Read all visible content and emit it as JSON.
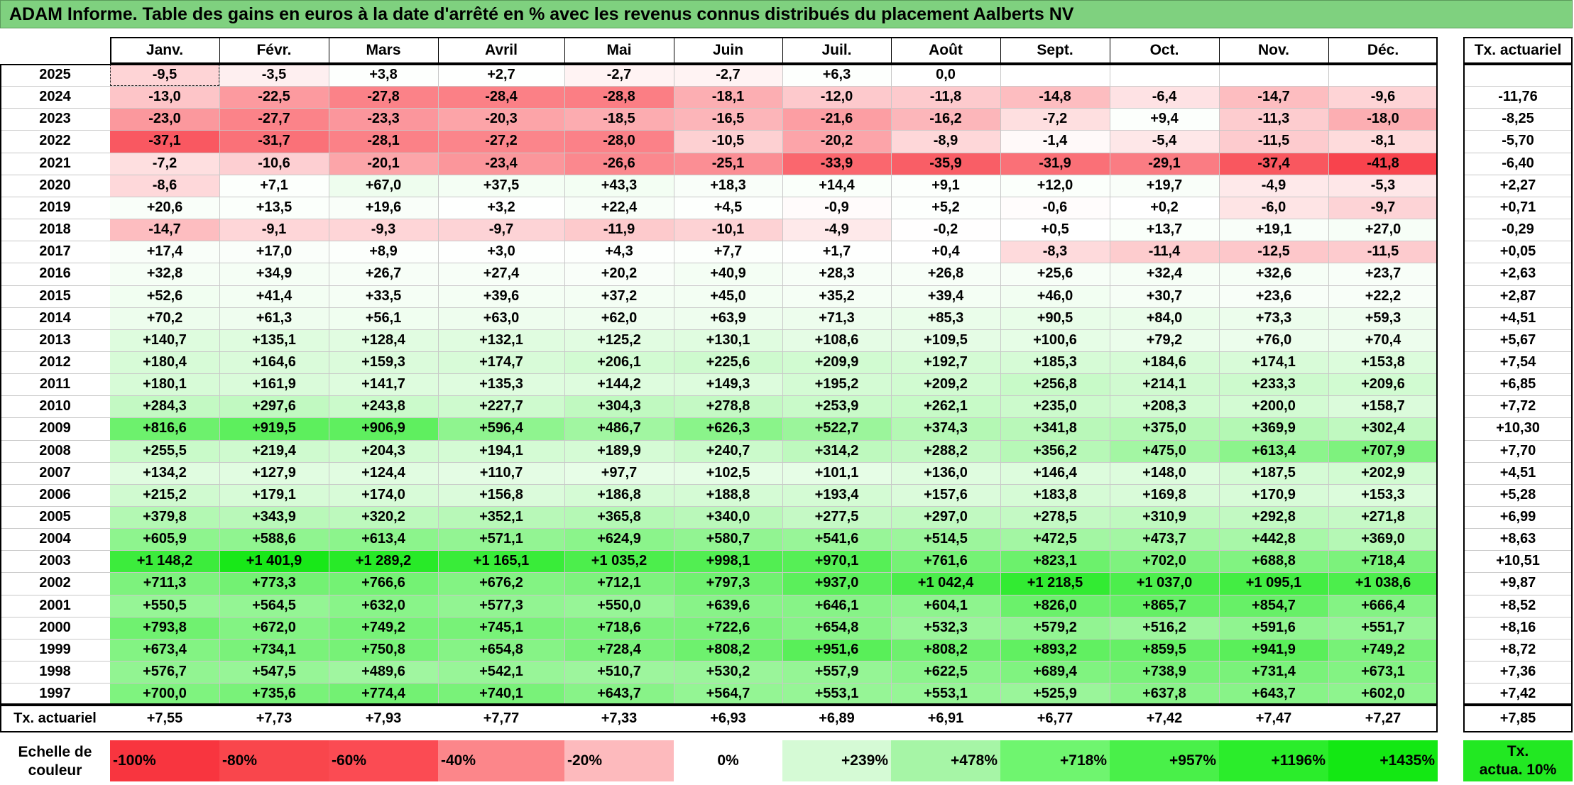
{
  "title": "ADAM Informe. Table des gains en euros à la date d'arrêté en % avec les revenus connus distribués du placement Aalberts NV",
  "months": [
    "Janv.",
    "Févr.",
    "Mars",
    "Avril",
    "Mai",
    "Juin",
    "Juil.",
    "Août",
    "Sept.",
    "Oct.",
    "Nov.",
    "Déc."
  ],
  "rate_header": "Tx. actuariel",
  "rows": [
    {
      "year": "2025",
      "values": [
        "-9,5",
        "-3,5",
        "+3,8",
        "+2,7",
        "-2,7",
        "-2,7",
        "+6,3",
        "0,0",
        "",
        "",
        "",
        ""
      ],
      "rate": ""
    },
    {
      "year": "2024",
      "values": [
        "-13,0",
        "-22,5",
        "-27,8",
        "-28,4",
        "-28,8",
        "-18,1",
        "-12,0",
        "-11,8",
        "-14,8",
        "-6,4",
        "-14,7",
        "-9,6"
      ],
      "rate": "-11,76"
    },
    {
      "year": "2023",
      "values": [
        "-23,0",
        "-27,7",
        "-23,3",
        "-20,3",
        "-18,5",
        "-16,5",
        "-21,6",
        "-16,2",
        "-7,2",
        "+9,4",
        "-11,3",
        "-18,0"
      ],
      "rate": "-8,25"
    },
    {
      "year": "2022",
      "values": [
        "-37,1",
        "-31,7",
        "-28,1",
        "-27,2",
        "-28,0",
        "-10,5",
        "-20,2",
        "-8,9",
        "-1,4",
        "-5,4",
        "-11,5",
        "-8,1"
      ],
      "rate": "-5,70"
    },
    {
      "year": "2021",
      "values": [
        "-7,2",
        "-10,6",
        "-20,1",
        "-23,4",
        "-26,6",
        "-25,1",
        "-33,9",
        "-35,9",
        "-31,9",
        "-29,1",
        "-37,4",
        "-41,8"
      ],
      "rate": "-6,40"
    },
    {
      "year": "2020",
      "values": [
        "-8,6",
        "+7,1",
        "+67,0",
        "+37,5",
        "+43,3",
        "+18,3",
        "+14,4",
        "+9,1",
        "+12,0",
        "+19,7",
        "-4,9",
        "-5,3"
      ],
      "rate": "+2,27"
    },
    {
      "year": "2019",
      "values": [
        "+20,6",
        "+13,5",
        "+19,6",
        "+3,2",
        "+22,4",
        "+4,5",
        "-0,9",
        "+5,2",
        "-0,6",
        "+0,2",
        "-6,0",
        "-9,7"
      ],
      "rate": "+0,71"
    },
    {
      "year": "2018",
      "values": [
        "-14,7",
        "-9,1",
        "-9,3",
        "-9,7",
        "-11,9",
        "-10,1",
        "-4,9",
        "-0,2",
        "+0,5",
        "+13,7",
        "+19,1",
        "+27,0"
      ],
      "rate": "-0,29"
    },
    {
      "year": "2017",
      "values": [
        "+17,4",
        "+17,0",
        "+8,9",
        "+3,0",
        "+4,3",
        "+7,7",
        "+1,7",
        "+0,4",
        "-8,3",
        "-11,4",
        "-12,5",
        "-11,5"
      ],
      "rate": "+0,05"
    },
    {
      "year": "2016",
      "values": [
        "+32,8",
        "+34,9",
        "+26,7",
        "+27,4",
        "+20,2",
        "+40,9",
        "+28,3",
        "+26,8",
        "+25,6",
        "+32,4",
        "+32,6",
        "+23,7"
      ],
      "rate": "+2,63"
    },
    {
      "year": "2015",
      "values": [
        "+52,6",
        "+41,4",
        "+33,5",
        "+39,6",
        "+37,2",
        "+45,0",
        "+35,2",
        "+39,4",
        "+46,0",
        "+30,7",
        "+23,6",
        "+22,2"
      ],
      "rate": "+2,87"
    },
    {
      "year": "2014",
      "values": [
        "+70,2",
        "+61,3",
        "+56,1",
        "+63,0",
        "+62,0",
        "+63,9",
        "+71,3",
        "+85,3",
        "+90,5",
        "+84,0",
        "+73,3",
        "+59,3"
      ],
      "rate": "+4,51"
    },
    {
      "year": "2013",
      "values": [
        "+140,7",
        "+135,1",
        "+128,4",
        "+132,1",
        "+125,2",
        "+130,1",
        "+108,6",
        "+109,5",
        "+100,6",
        "+79,2",
        "+76,0",
        "+70,4"
      ],
      "rate": "+5,67"
    },
    {
      "year": "2012",
      "values": [
        "+180,4",
        "+164,6",
        "+159,3",
        "+174,7",
        "+206,1",
        "+225,6",
        "+209,9",
        "+192,7",
        "+185,3",
        "+184,6",
        "+174,1",
        "+153,8"
      ],
      "rate": "+7,54"
    },
    {
      "year": "2011",
      "values": [
        "+180,1",
        "+161,9",
        "+141,7",
        "+135,3",
        "+144,2",
        "+149,3",
        "+195,2",
        "+209,2",
        "+256,8",
        "+214,1",
        "+233,3",
        "+209,6"
      ],
      "rate": "+6,85"
    },
    {
      "year": "2010",
      "values": [
        "+284,3",
        "+297,6",
        "+243,8",
        "+227,7",
        "+304,3",
        "+278,8",
        "+253,9",
        "+262,1",
        "+235,0",
        "+208,3",
        "+200,0",
        "+158,7"
      ],
      "rate": "+7,72"
    },
    {
      "year": "2009",
      "values": [
        "+816,6",
        "+919,5",
        "+906,9",
        "+596,4",
        "+486,7",
        "+626,3",
        "+522,7",
        "+374,3",
        "+341,8",
        "+375,0",
        "+369,9",
        "+302,4"
      ],
      "rate": "+10,30"
    },
    {
      "year": "2008",
      "values": [
        "+255,5",
        "+219,4",
        "+204,3",
        "+194,1",
        "+189,9",
        "+240,7",
        "+314,2",
        "+288,2",
        "+356,2",
        "+475,0",
        "+613,4",
        "+707,9"
      ],
      "rate": "+7,70"
    },
    {
      "year": "2007",
      "values": [
        "+134,2",
        "+127,9",
        "+124,4",
        "+110,7",
        "+97,7",
        "+102,5",
        "+101,1",
        "+136,0",
        "+146,4",
        "+148,0",
        "+187,5",
        "+202,9"
      ],
      "rate": "+4,51"
    },
    {
      "year": "2006",
      "values": [
        "+215,2",
        "+179,1",
        "+174,0",
        "+156,8",
        "+186,8",
        "+188,8",
        "+193,4",
        "+157,6",
        "+183,8",
        "+169,8",
        "+170,9",
        "+153,3"
      ],
      "rate": "+5,28"
    },
    {
      "year": "2005",
      "values": [
        "+379,8",
        "+343,9",
        "+320,2",
        "+352,1",
        "+365,8",
        "+340,0",
        "+277,5",
        "+297,0",
        "+278,5",
        "+310,9",
        "+292,8",
        "+271,8"
      ],
      "rate": "+6,99"
    },
    {
      "year": "2004",
      "values": [
        "+605,9",
        "+588,6",
        "+613,4",
        "+571,1",
        "+624,9",
        "+580,7",
        "+541,6",
        "+514,5",
        "+472,5",
        "+473,7",
        "+442,8",
        "+369,0"
      ],
      "rate": "+8,63"
    },
    {
      "year": "2003",
      "values": [
        "+1 148,2",
        "+1 401,9",
        "+1 289,2",
        "+1 165,1",
        "+1 035,2",
        "+998,1",
        "+970,1",
        "+761,6",
        "+823,1",
        "+702,0",
        "+688,8",
        "+718,4"
      ],
      "rate": "+10,51"
    },
    {
      "year": "2002",
      "values": [
        "+711,3",
        "+773,3",
        "+766,6",
        "+676,2",
        "+712,1",
        "+797,3",
        "+937,0",
        "+1 042,4",
        "+1 218,5",
        "+1 037,0",
        "+1 095,1",
        "+1 038,6"
      ],
      "rate": "+9,87"
    },
    {
      "year": "2001",
      "values": [
        "+550,5",
        "+564,5",
        "+632,0",
        "+577,3",
        "+550,0",
        "+639,6",
        "+646,1",
        "+604,1",
        "+826,0",
        "+865,7",
        "+854,7",
        "+666,4"
      ],
      "rate": "+8,52"
    },
    {
      "year": "2000",
      "values": [
        "+793,8",
        "+672,0",
        "+749,2",
        "+745,1",
        "+718,6",
        "+722,6",
        "+654,8",
        "+532,3",
        "+579,2",
        "+516,2",
        "+591,6",
        "+551,7"
      ],
      "rate": "+8,16"
    },
    {
      "year": "1999",
      "values": [
        "+673,4",
        "+734,1",
        "+750,8",
        "+654,8",
        "+728,4",
        "+808,2",
        "+951,6",
        "+808,2",
        "+893,2",
        "+859,5",
        "+941,9",
        "+749,2"
      ],
      "rate": "+8,72"
    },
    {
      "year": "1998",
      "values": [
        "+576,7",
        "+547,5",
        "+489,6",
        "+542,1",
        "+510,7",
        "+530,2",
        "+557,9",
        "+622,5",
        "+689,4",
        "+738,9",
        "+731,4",
        "+673,1"
      ],
      "rate": "+7,36"
    },
    {
      "year": "1997",
      "values": [
        "+700,0",
        "+735,6",
        "+774,4",
        "+740,1",
        "+643,7",
        "+564,7",
        "+553,1",
        "+553,1",
        "+525,9",
        "+637,8",
        "+643,7",
        "+602,0"
      ],
      "rate": "+7,42"
    }
  ],
  "totals": {
    "label": "Tx. actuariel",
    "values": [
      "+7,55",
      "+7,73",
      "+7,93",
      "+7,77",
      "+7,33",
      "+6,93",
      "+6,89",
      "+6,91",
      "+6,77",
      "+7,42",
      "+7,47",
      "+7,27"
    ],
    "overall": "+7,85"
  },
  "scale": {
    "label": "Echelle de couleur",
    "items": [
      {
        "text": "-100%",
        "color": "#f8353f",
        "align": "left"
      },
      {
        "text": "-80%",
        "color": "#f9464c",
        "align": "left"
      },
      {
        "text": "-60%",
        "color": "#fb4b53",
        "align": "left"
      },
      {
        "text": "-40%",
        "color": "#fc868a",
        "align": "left"
      },
      {
        "text": "-20%",
        "color": "#fdbabd",
        "align": "left"
      },
      {
        "text": "0%",
        "color": "#ffffff",
        "align": "center"
      },
      {
        "text": "+239%",
        "color": "#d5fad5",
        "align": "right"
      },
      {
        "text": "+478%",
        "color": "#a6f5a6",
        "align": "right"
      },
      {
        "text": "+718%",
        "color": "#6ff56f",
        "align": "right"
      },
      {
        "text": "+957%",
        "color": "#49f049",
        "align": "right"
      },
      {
        "text": "+1196%",
        "color": "#2bed2b",
        "align": "right"
      },
      {
        "text": "+1435%",
        "color": "#13e813",
        "align": "right"
      }
    ],
    "rate_item": {
      "text": "Tx. actua. 10%",
      "color": "#22e822"
    }
  },
  "colors": {
    "title_bg": "#7fd17f",
    "negative_max": "#f8353f",
    "positive_max": "#13e813",
    "neutral": "#ffffff"
  }
}
